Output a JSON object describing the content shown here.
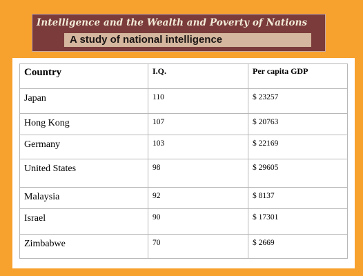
{
  "banner": {
    "title": "Intelligence and the Wealth and Poverty of Nations",
    "subtitle": "A study of national intelligence"
  },
  "table": {
    "headers": [
      "Country",
      "I.Q.",
      "Per capita GDP"
    ],
    "rows": [
      [
        "Japan",
        "110",
        "$ 23257"
      ],
      [
        "Hong Kong",
        "107",
        "$ 20763"
      ],
      [
        "Germany",
        "103",
        "$ 22169"
      ],
      [
        "United States",
        "98",
        "$ 29605"
      ],
      [
        "Malaysia",
        "92",
        "$ 8137"
      ],
      [
        "Israel",
        "90",
        "$ 17301"
      ],
      [
        "Zimbabwe",
        "70",
        "$ 2669"
      ]
    ]
  },
  "colors": {
    "background": "#f7a12e",
    "banner": "#7a3b3a",
    "banner_highlight": "#d4b79e"
  }
}
